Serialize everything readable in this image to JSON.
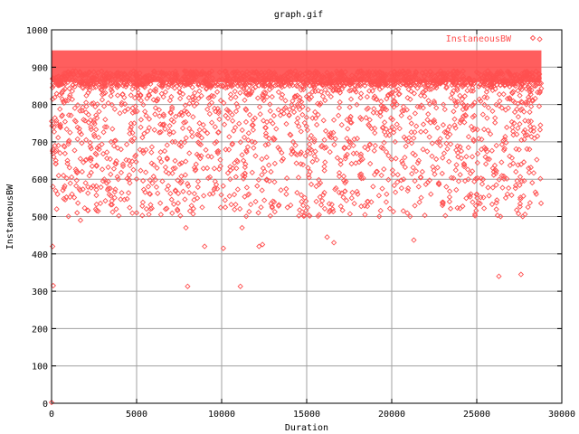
{
  "chart_data": {
    "type": "scatter",
    "title": "graph.gif",
    "xlabel": "Duration",
    "ylabel": "InstaneousBW",
    "xlim": [
      0,
      30000
    ],
    "ylim": [
      0,
      1000
    ],
    "x_ticks": [
      0,
      5000,
      10000,
      15000,
      20000,
      25000,
      30000
    ],
    "y_ticks": [
      0,
      100,
      200,
      300,
      400,
      500,
      600,
      700,
      800,
      900,
      1000
    ],
    "grid": true,
    "legend_position": "top-right",
    "series": [
      {
        "name": "InstaneousBW",
        "color": "#ff5050",
        "marker": "diamond",
        "points": [
          [
            0,
            2
          ],
          [
            60,
            420
          ],
          [
            100,
            315
          ],
          [
            80,
            580
          ],
          [
            150,
            740
          ],
          [
            200,
            690
          ],
          [
            250,
            650
          ],
          [
            300,
            520
          ],
          [
            350,
            560
          ],
          [
            400,
            860
          ],
          [
            500,
            670
          ],
          [
            600,
            830
          ],
          [
            700,
            610
          ],
          [
            800,
            545
          ],
          [
            1000,
            700
          ],
          [
            1200,
            560
          ],
          [
            1500,
            510
          ],
          [
            1700,
            490
          ],
          [
            1800,
            620
          ],
          [
            2000,
            590
          ],
          [
            2300,
            650
          ],
          [
            2600,
            520
          ],
          [
            2800,
            680
          ],
          [
            3100,
            600
          ],
          [
            3500,
            700
          ],
          [
            3800,
            520
          ],
          [
            4200,
            640
          ],
          [
            4600,
            590
          ],
          [
            5000,
            510
          ],
          [
            5400,
            670
          ],
          [
            5800,
            560
          ],
          [
            6200,
            630
          ],
          [
            6700,
            520
          ],
          [
            7100,
            700
          ],
          [
            7600,
            590
          ],
          [
            7900,
            470
          ],
          [
            8000,
            313
          ],
          [
            8500,
            640
          ],
          [
            9000,
            420
          ],
          [
            9300,
            560
          ],
          [
            9700,
            700
          ],
          [
            10100,
            415
          ],
          [
            10500,
            600
          ],
          [
            10900,
            650
          ],
          [
            11100,
            313
          ],
          [
            11200,
            470
          ],
          [
            11600,
            560
          ],
          [
            12000,
            540
          ],
          [
            12200,
            420
          ],
          [
            12400,
            425
          ],
          [
            12900,
            620
          ],
          [
            13400,
            680
          ],
          [
            13800,
            560
          ],
          [
            14200,
            700
          ],
          [
            14700,
            540
          ],
          [
            15200,
            620
          ],
          [
            15800,
            590
          ],
          [
            16200,
            445
          ],
          [
            16600,
            430
          ],
          [
            17000,
            640
          ],
          [
            17500,
            700
          ],
          [
            18000,
            560
          ],
          [
            18600,
            680
          ],
          [
            19100,
            620
          ],
          [
            19700,
            560
          ],
          [
            20200,
            700
          ],
          [
            20700,
            600
          ],
          [
            21300,
            437
          ],
          [
            21800,
            620
          ],
          [
            22300,
            560
          ],
          [
            22800,
            700
          ],
          [
            23400,
            540
          ],
          [
            23900,
            660
          ],
          [
            24500,
            600
          ],
          [
            25000,
            560
          ],
          [
            25500,
            680
          ],
          [
            26000,
            620
          ],
          [
            26300,
            340
          ],
          [
            26400,
            500
          ],
          [
            26800,
            560
          ],
          [
            27300,
            620
          ],
          [
            27600,
            345
          ],
          [
            27700,
            500
          ],
          [
            28100,
            680
          ],
          [
            28500,
            560
          ],
          [
            28700,
            975
          ]
        ],
        "dense_band": {
          "x": [
            0,
            28800
          ],
          "y": [
            860,
            945
          ]
        },
        "scatter_region": {
          "x": [
            0,
            28800
          ],
          "y": [
            500,
            860
          ]
        }
      }
    ]
  }
}
